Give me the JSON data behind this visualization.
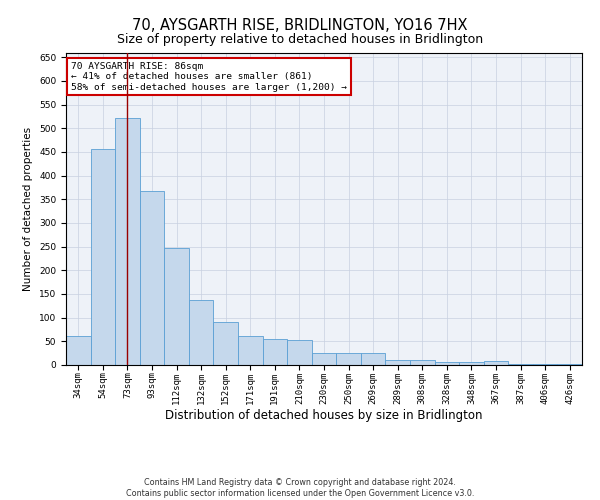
{
  "title": "70, AYSGARTH RISE, BRIDLINGTON, YO16 7HX",
  "subtitle": "Size of property relative to detached houses in Bridlington",
  "xlabel": "Distribution of detached houses by size in Bridlington",
  "ylabel": "Number of detached properties",
  "categories": [
    "34sqm",
    "54sqm",
    "73sqm",
    "93sqm",
    "112sqm",
    "132sqm",
    "152sqm",
    "171sqm",
    "191sqm",
    "210sqm",
    "230sqm",
    "250sqm",
    "269sqm",
    "289sqm",
    "308sqm",
    "328sqm",
    "348sqm",
    "367sqm",
    "387sqm",
    "406sqm",
    "426sqm"
  ],
  "values": [
    62,
    456,
    521,
    367,
    248,
    138,
    91,
    61,
    55,
    53,
    25,
    25,
    25,
    11,
    11,
    6,
    6,
    8,
    3,
    3,
    3
  ],
  "bar_color": "#c5d8ec",
  "bar_edge_color": "#5a9fd4",
  "vline_x": 2,
  "vline_color": "#990000",
  "annotation_text": "70 AYSGARTH RISE: 86sqm\n← 41% of detached houses are smaller (861)\n58% of semi-detached houses are larger (1,200) →",
  "annotation_box_color": "#ffffff",
  "annotation_box_edge": "#cc0000",
  "ylim": [
    0,
    660
  ],
  "yticks": [
    0,
    50,
    100,
    150,
    200,
    250,
    300,
    350,
    400,
    450,
    500,
    550,
    600,
    650
  ],
  "background_color": "#eef2f8",
  "footer_line1": "Contains HM Land Registry data © Crown copyright and database right 2024.",
  "footer_line2": "Contains public sector information licensed under the Open Government Licence v3.0.",
  "title_fontsize": 10.5,
  "subtitle_fontsize": 9,
  "xlabel_fontsize": 8.5,
  "ylabel_fontsize": 7.5,
  "tick_fontsize": 6.5,
  "annotation_fontsize": 6.8,
  "footer_fontsize": 5.8
}
